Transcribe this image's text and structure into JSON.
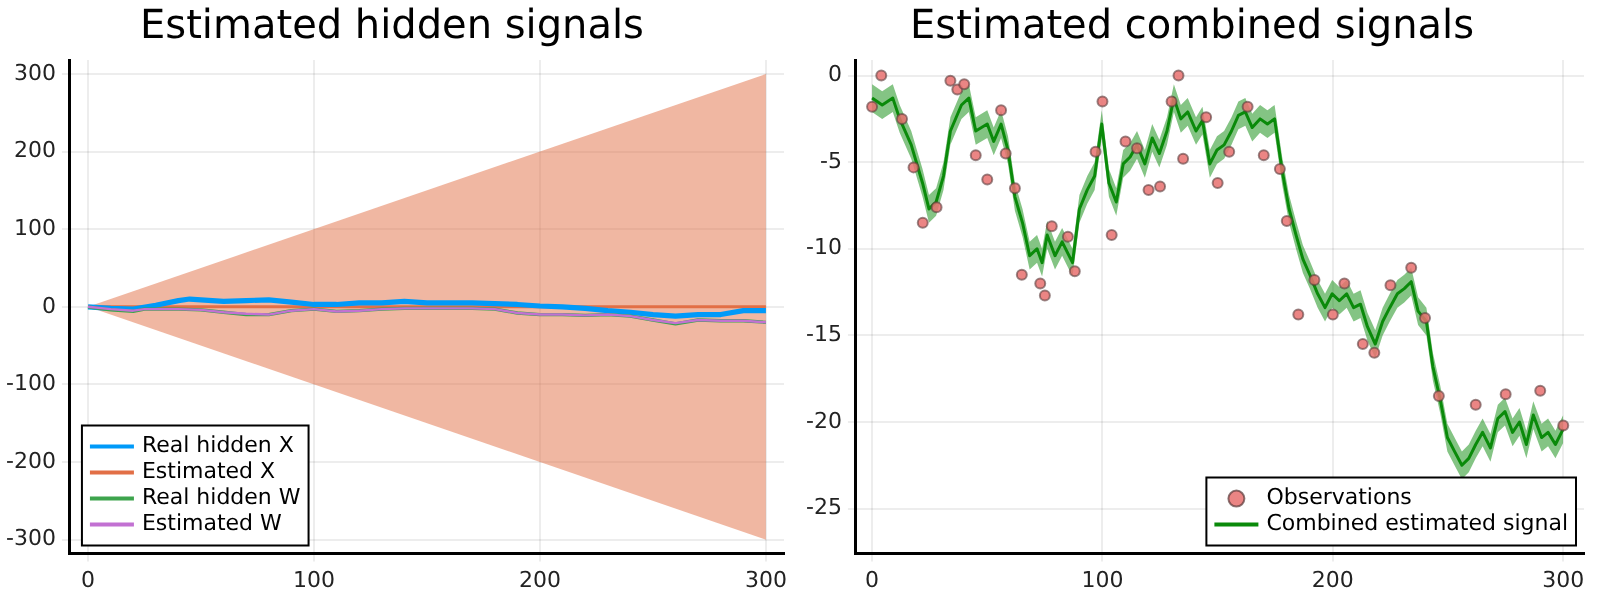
{
  "chart_data": [
    {
      "type": "line",
      "title": "Estimated hidden signals",
      "xlim": [
        -8,
        308
      ],
      "ylim": [
        -318,
        318
      ],
      "xticks": [
        0,
        100,
        200,
        300
      ],
      "yticks": [
        -300,
        -200,
        -100,
        0,
        100,
        200,
        300
      ],
      "grid": true,
      "legend": "bottom left",
      "series": [
        {
          "name": "Real hidden X",
          "color": "#009af9",
          "x": [
            0,
            10,
            20,
            30,
            40,
            45,
            50,
            60,
            70,
            80,
            90,
            100,
            110,
            120,
            130,
            140,
            150,
            160,
            170,
            180,
            190,
            200,
            210,
            220,
            230,
            240,
            250,
            260,
            270,
            280,
            290,
            300
          ],
          "values": [
            0,
            -2,
            -3,
            2,
            8,
            10,
            9,
            7,
            8,
            9,
            6,
            3,
            3,
            5,
            5,
            7,
            5,
            5,
            5,
            4,
            3,
            1,
            0,
            -2,
            -5,
            -7,
            -10,
            -12,
            -10,
            -10,
            -5,
            -5
          ]
        },
        {
          "name": "Estimated X",
          "color": "#e26f46",
          "x": [
            0,
            300
          ],
          "values": [
            0,
            0
          ],
          "lower": [
            0,
            -300
          ],
          "upper": [
            0,
            300
          ]
        },
        {
          "name": "Real hidden W",
          "color": "#3da44d",
          "x": [
            0,
            10,
            20,
            25,
            30,
            40,
            50,
            60,
            70,
            80,
            90,
            100,
            110,
            120,
            130,
            140,
            150,
            160,
            170,
            180,
            190,
            200,
            210,
            220,
            230,
            240,
            250,
            260,
            270,
            280,
            290,
            300
          ],
          "values": [
            0,
            -4,
            -6,
            -3,
            -3,
            -3,
            -4,
            -7,
            -10,
            -10,
            -5,
            -3,
            -6,
            -5,
            -3,
            -2,
            -2,
            -2,
            -2,
            -3,
            -8,
            -10,
            -10,
            -11,
            -10,
            -12,
            -17,
            -22,
            -17,
            -18,
            -18,
            -20
          ]
        },
        {
          "name": "Estimated W",
          "color": "#c271d2",
          "x": [
            0,
            10,
            20,
            25,
            30,
            40,
            50,
            60,
            70,
            80,
            90,
            100,
            110,
            120,
            130,
            140,
            150,
            160,
            170,
            180,
            190,
            200,
            210,
            220,
            230,
            240,
            250,
            260,
            270,
            280,
            290,
            300
          ],
          "values": [
            0,
            -3,
            -5,
            -3,
            -3,
            -3,
            -4,
            -7,
            -9,
            -10,
            -5,
            -3,
            -6,
            -5,
            -3,
            -2,
            -2,
            -2,
            -2,
            -3,
            -8,
            -10,
            -10,
            -11,
            -10,
            -12,
            -17,
            -21,
            -17,
            -18,
            -18,
            -20
          ]
        }
      ]
    },
    {
      "type": "scatter",
      "title": "Estimated combined signals",
      "xlim": [
        -7,
        309
      ],
      "ylim": [
        -27.6,
        0.9
      ],
      "xticks": [
        0,
        100,
        200,
        300
      ],
      "yticks": [
        -25,
        -20,
        -15,
        -10,
        -5,
        0
      ],
      "grid": true,
      "legend": "bottom right",
      "series": [
        {
          "name": "Observations",
          "color": "#e8706e",
          "marker": "circle",
          "x": [
            0,
            4,
            13,
            18,
            22,
            28,
            34,
            37,
            40,
            45,
            50,
            56,
            58,
            62,
            65,
            73,
            75,
            78,
            85,
            88,
            97,
            100,
            104,
            110,
            115,
            120,
            125,
            130,
            133,
            135,
            145,
            150,
            155,
            163,
            170,
            177,
            180,
            185,
            192,
            200,
            205,
            213,
            218,
            225,
            234,
            240,
            246,
            262,
            275,
            290,
            300
          ],
          "values": [
            -1.8,
            0,
            -2.5,
            -5.3,
            -8.5,
            -7.6,
            -0.3,
            -0.8,
            -0.5,
            -4.6,
            -6,
            -2,
            -4.5,
            -6.5,
            -11.5,
            -12,
            -12.7,
            -8.7,
            -9.3,
            -11.3,
            -4.4,
            -1.5,
            -9.2,
            -3.8,
            -4.2,
            -6.6,
            -6.4,
            -1.5,
            0,
            -4.8,
            -2.4,
            -6.2,
            -4.4,
            -1.8,
            -4.6,
            -5.4,
            -8.4,
            -13.8,
            -11.8,
            -13.8,
            -12,
            -15.5,
            -16,
            -12.1,
            -11.1,
            -14,
            -18.5,
            -19,
            -18.4,
            -18.2,
            -20.2
          ]
        },
        {
          "name": "Combined estimated signal",
          "type": "line",
          "color": "#0a8a0a",
          "x": [
            0,
            4.4,
            9,
            12,
            17,
            21.9,
            24.7,
            27.8,
            31,
            34,
            38.8,
            42,
            45,
            50,
            52.8,
            56,
            59,
            62,
            65.3,
            68.4,
            71.6,
            73.8,
            76,
            79.4,
            82.5,
            87,
            90,
            93.4,
            96.6,
            99.7,
            102.8,
            106,
            109,
            112,
            115,
            118.4,
            121.6,
            124.7,
            128,
            131,
            134,
            137,
            140.6,
            143.4,
            146.6,
            149.7,
            152.8,
            156,
            159,
            162,
            165,
            168.4,
            171.6,
            174.7,
            178,
            181,
            184,
            187,
            190,
            193.4,
            196.6,
            199.7,
            202.8,
            206,
            209,
            212,
            215,
            218.4,
            221.6,
            224.7,
            228,
            231,
            234,
            237,
            240.6,
            243.4,
            246.6,
            249.7,
            252.8,
            256,
            259,
            262,
            265,
            268.4,
            271.6,
            274.7,
            278,
            281,
            284,
            287,
            290.6,
            293.4,
            296.6,
            300
          ],
          "values": [
            -1.3,
            -1.7,
            -1.3,
            -2.5,
            -4,
            -6.2,
            -7.7,
            -7.3,
            -5.8,
            -3.2,
            -1.7,
            -1.3,
            -3.2,
            -2.8,
            -3.8,
            -2.8,
            -4.3,
            -7,
            -8.5,
            -10.4,
            -10,
            -10.8,
            -9.2,
            -10.4,
            -9.6,
            -10.8,
            -7.7,
            -6.6,
            -5.8,
            -2.8,
            -6.2,
            -7.3,
            -5.1,
            -4.7,
            -4,
            -5.1,
            -3.6,
            -4.5,
            -3.2,
            -1.3,
            -2.5,
            -2.1,
            -3.2,
            -2.6,
            -5.1,
            -4.3,
            -4,
            -3.2,
            -2.3,
            -2.1,
            -3,
            -2.5,
            -2.8,
            -2.5,
            -5.5,
            -7.7,
            -9.2,
            -10.6,
            -11.5,
            -12.6,
            -13.4,
            -12.6,
            -13,
            -12.6,
            -13.4,
            -13.2,
            -14.5,
            -15.5,
            -14.2,
            -13.4,
            -12.6,
            -12.3,
            -11.9,
            -13.6,
            -14.2,
            -16.8,
            -18.7,
            -20.9,
            -21.7,
            -22.5,
            -22.1,
            -21.3,
            -20.6,
            -21.5,
            -19.8,
            -19.4,
            -20.6,
            -20,
            -21.3,
            -19.6,
            -20.9,
            -20.6,
            -21.3,
            -20.4
          ],
          "lower": [
            -2.1,
            -2.5,
            -2.1,
            -3.3,
            -4.8,
            -7,
            -8.5,
            -8.1,
            -6.6,
            -4,
            -2.5,
            -2.1,
            -4,
            -3.6,
            -4.6,
            -3.6,
            -5.1,
            -7.8,
            -9.3,
            -11.2,
            -10.8,
            -11.6,
            -10,
            -11.2,
            -10.4,
            -11.6,
            -8.5,
            -7.4,
            -6.6,
            -3.6,
            -7,
            -8.1,
            -5.9,
            -5.5,
            -4.8,
            -5.9,
            -4.4,
            -5.3,
            -4,
            -2.1,
            -3.3,
            -2.9,
            -4,
            -3.4,
            -5.9,
            -5.1,
            -4.8,
            -4,
            -3.1,
            -2.9,
            -3.8,
            -3.3,
            -3.6,
            -3.3,
            -6.3,
            -8.5,
            -10,
            -11.4,
            -12.3,
            -13.4,
            -14.2,
            -13.4,
            -13.8,
            -13.4,
            -14.2,
            -14,
            -15.3,
            -16.3,
            -15,
            -14.2,
            -13.4,
            -13.1,
            -12.7,
            -14.4,
            -15,
            -17.6,
            -19.5,
            -21.7,
            -22.5,
            -23.3,
            -22.9,
            -22.1,
            -21.4,
            -22.3,
            -20.6,
            -20.2,
            -21.4,
            -20.8,
            -22.1,
            -20.4,
            -21.7,
            -21.4,
            -22.1,
            -21.2
          ],
          "upper": [
            -0.5,
            -0.9,
            -0.5,
            -1.7,
            -3.2,
            -5.4,
            -6.9,
            -6.5,
            -5,
            -2.4,
            -0.9,
            -0.5,
            -2.4,
            -2,
            -3,
            -2,
            -3.5,
            -6.2,
            -7.7,
            -9.6,
            -9.2,
            -10,
            -8.4,
            -9.6,
            -8.8,
            -10,
            -6.9,
            -5.8,
            -5,
            -2,
            -5.4,
            -6.5,
            -4.3,
            -3.9,
            -3.2,
            -4.3,
            -2.8,
            -3.7,
            -2.4,
            -0.5,
            -1.7,
            -1.3,
            -2.4,
            -1.8,
            -4.3,
            -3.5,
            -3.2,
            -2.4,
            -1.5,
            -1.3,
            -2.2,
            -1.7,
            -2,
            -1.7,
            -4.7,
            -6.9,
            -8.4,
            -9.8,
            -10.7,
            -11.8,
            -12.6,
            -11.8,
            -12.2,
            -11.8,
            -12.6,
            -12.4,
            -13.7,
            -14.7,
            -13.4,
            -12.6,
            -11.8,
            -11.5,
            -11.1,
            -12.8,
            -13.4,
            -16,
            -17.9,
            -20.1,
            -20.9,
            -21.7,
            -21.3,
            -20.5,
            -19.8,
            -20.7,
            -19,
            -18.6,
            -19.8,
            -19.2,
            -20.5,
            -18.8,
            -20.1,
            -19.8,
            -20.5,
            -19.6
          ]
        }
      ]
    }
  ]
}
